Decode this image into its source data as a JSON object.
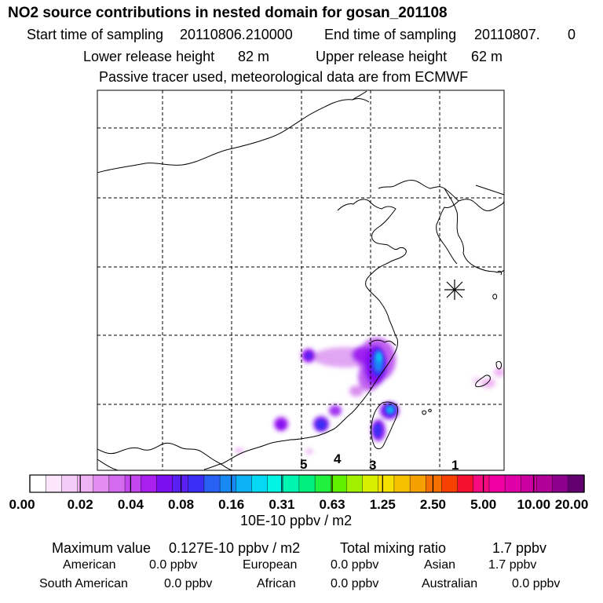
{
  "title": "NO2 source contributions in nested domain for gosan_201108",
  "header": {
    "start_label": "Start time of sampling",
    "start_value": "20110806.210000",
    "end_label": "End time of sampling",
    "end_value": "20110807.",
    "end_suffix": "0",
    "lower_label": "Lower release height",
    "lower_value": "82 m",
    "upper_label": "Upper release height",
    "upper_value": "62 m",
    "note": "Passive tracer used, meteorological data are from ECMWF"
  },
  "map": {
    "receptor_marker": "asterisk-icon",
    "region_labels": [
      "5",
      "4",
      "3",
      "1"
    ]
  },
  "colorbar": {
    "colors": [
      "#ffffff",
      "#fbe6fb",
      "#f5ccf7",
      "#efb3f3",
      "#e28cf0",
      "#d46aee",
      "#c247ee",
      "#a81fee",
      "#7b0ff0",
      "#5a1ff2",
      "#3a2ef4",
      "#2860f4",
      "#1888f5",
      "#0cb0f5",
      "#05d8f2",
      "#00f5e5",
      "#00f5b0",
      "#00f080",
      "#20f040",
      "#60f000",
      "#a0f000",
      "#d8f000",
      "#f5e000",
      "#f5c000",
      "#f5a000",
      "#f57000",
      "#f54000",
      "#f51030",
      "#f50a80",
      "#f000a0",
      "#e000a8",
      "#cc00a0",
      "#b00098",
      "#8a008c",
      "#620070"
    ],
    "ticks": [
      "0.00",
      "0.02",
      "0.04",
      "0.08",
      "0.16",
      "0.31",
      "0.63",
      "1.25",
      "2.50",
      "5.00",
      "10.00",
      "20.00"
    ],
    "units": "10E-10 ppbv / m2"
  },
  "summary": {
    "max_label": "Maximum value",
    "max_value": "0.127E-10 ppbv / m2",
    "total_label": "Total mixing ratio",
    "total_value": "1.7 ppbv",
    "regions": [
      {
        "name": "American",
        "value": "0.0 ppbv"
      },
      {
        "name": "European",
        "value": "0.0 ppbv"
      },
      {
        "name": "Asian",
        "value": "1.7 ppbv"
      },
      {
        "name": "South American",
        "value": "0.0 ppbv"
      },
      {
        "name": "African",
        "value": "0.0 ppbv"
      },
      {
        "name": "Australian",
        "value": "0.0 ppbv"
      }
    ]
  }
}
